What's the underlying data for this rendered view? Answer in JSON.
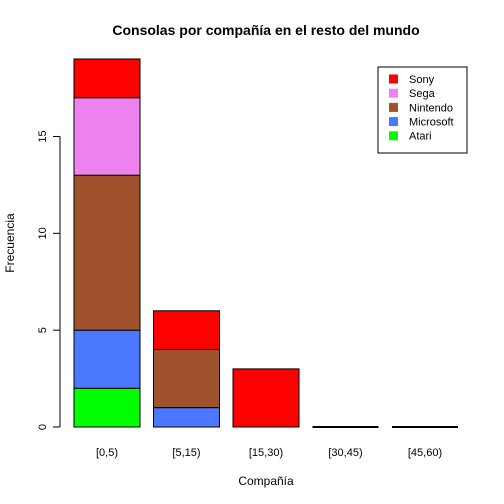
{
  "chart_data": {
    "type": "bar",
    "stacked": true,
    "title": "Consolas por compañía en el resto del mundo",
    "xlabel": "Compañía",
    "ylabel": "Frecuencia",
    "categories": [
      "[0,5)",
      "[5,15)",
      "[15,30)",
      "[30,45)",
      "[45,60)"
    ],
    "series": [
      {
        "name": "Atari",
        "color": "#00ff00",
        "values": [
          2,
          0,
          0,
          0,
          0
        ]
      },
      {
        "name": "Microsoft",
        "color": "#4a78ff",
        "values": [
          3,
          1,
          0,
          0,
          0
        ]
      },
      {
        "name": "Nintendo",
        "color": "#a0522d",
        "values": [
          8,
          3,
          0,
          0,
          0
        ]
      },
      {
        "name": "Sega",
        "color": "#ee82ee",
        "values": [
          4,
          0,
          0,
          0,
          0
        ]
      },
      {
        "name": "Sony",
        "color": "#ff0000",
        "values": [
          2,
          2,
          3,
          0,
          0
        ]
      }
    ],
    "legend_order": [
      "Sony",
      "Sega",
      "Nintendo",
      "Microsoft",
      "Atari"
    ],
    "yticks": [
      0,
      5,
      10,
      15
    ],
    "ylim": [
      0,
      19
    ],
    "grid": false,
    "legend_position": "top-right"
  }
}
